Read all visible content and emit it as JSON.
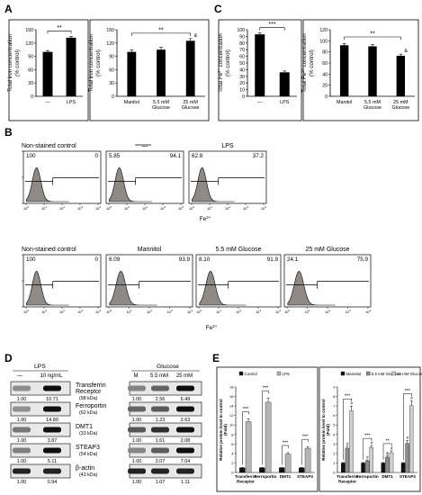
{
  "panel_labels": {
    "a": "A",
    "b": "B",
    "c": "C",
    "d": "D",
    "e": "E"
  },
  "chart_data": [
    {
      "id": "A1",
      "type": "bar",
      "ylabel": "Total iron concentration (% control)",
      "ylabel_lines": [
        "Total iron concentration",
        "(% control)"
      ],
      "categories": [
        "—",
        "LPS"
      ],
      "values": [
        100,
        132
      ],
      "errors": [
        3,
        3
      ],
      "ylim": [
        0,
        150
      ],
      "yticks": [
        0,
        30,
        60,
        90,
        120,
        150
      ],
      "significance": [
        {
          "from": 0,
          "to": 1,
          "label": "**"
        }
      ]
    },
    {
      "id": "A2",
      "type": "bar",
      "ylabel": "Total iron concentration (% control)",
      "ylabel_lines": [
        "Total iron concentration",
        "(% control)"
      ],
      "categories": [
        "Manitol",
        "5.5 mM Glucose",
        "25 mM Glucose"
      ],
      "category_lines": [
        [
          "Manitol"
        ],
        [
          "5.5 mM",
          "Glucose"
        ],
        [
          "25 mM",
          "Glucose"
        ]
      ],
      "values": [
        100,
        105,
        125
      ],
      "errors": [
        4,
        5,
        5
      ],
      "ylim": [
        0,
        150
      ],
      "yticks": [
        0,
        30,
        60,
        90,
        120,
        150
      ],
      "significance": [
        {
          "from": 0,
          "to": 2,
          "label": "**"
        }
      ],
      "bar_marks": [
        {
          "index": 2,
          "label": "&"
        }
      ]
    },
    {
      "id": "C1",
      "type": "bar",
      "ylabel": "Total Fe2+ concentration (% control)",
      "ylabel_lines": [
        "Total Fe",
        "2+",
        " concentration",
        "(% control)"
      ],
      "categories": [
        "—",
        "LPS"
      ],
      "values": [
        93,
        36
      ],
      "errors": [
        2,
        2
      ],
      "ylim": [
        0,
        100
      ],
      "yticks": [
        0,
        10,
        20,
        30,
        40,
        50,
        60,
        70,
        80,
        90,
        100
      ],
      "significance": [
        {
          "from": 0,
          "to": 1,
          "label": "***"
        }
      ]
    },
    {
      "id": "C2",
      "type": "bar",
      "ylabel": "Total Fe2+ concentration (% control)",
      "ylabel_lines": [
        "Total Fe",
        "2+",
        " concentration",
        "(% control)"
      ],
      "categories": [
        "Manitol",
        "5.5 mM Glucose",
        "25 mM Glucose"
      ],
      "category_lines": [
        [
          "Manitol"
        ],
        [
          "5.5 mM",
          "Glucose"
        ],
        [
          "25 mM",
          "Glucose"
        ]
      ],
      "values": [
        92,
        90,
        73
      ],
      "errors": [
        3,
        3,
        3
      ],
      "ylim": [
        0,
        120
      ],
      "yticks": [
        0,
        20,
        40,
        60,
        80,
        100,
        120
      ],
      "significance": [
        {
          "from": 0,
          "to": 2,
          "label": "**"
        }
      ],
      "bar_marks": [
        {
          "index": 2,
          "label": "&"
        }
      ]
    },
    {
      "id": "E1",
      "type": "bar",
      "ylabel": "Relative protein level to control (Fold)",
      "ylabel_lines": [
        "Relative protein level to control",
        "(Fold)"
      ],
      "categories": [
        "Transferrin Receptor",
        "Ferroportin",
        "DMT1",
        "STEAP3"
      ],
      "category_lines": [
        [
          "Transferrin",
          "Receptor"
        ],
        [
          "Ferroportin"
        ],
        [
          "DMT1"
        ],
        [
          "STEAP3"
        ]
      ],
      "series": [
        {
          "name": "Control",
          "values": [
            1,
            1,
            1,
            1
          ],
          "errors": [
            0.05,
            0.05,
            0.05,
            0.05
          ],
          "color": "#111111"
        },
        {
          "name": "LPS",
          "values": [
            10.7,
            14.8,
            3.87,
            5.11
          ],
          "errors": [
            0.6,
            0.9,
            0.3,
            0.35
          ],
          "color": "#b5b5b5"
        }
      ],
      "ylim": [
        0,
        18
      ],
      "yticks": [
        0,
        2,
        4,
        6,
        8,
        10,
        12,
        14,
        16,
        18
      ],
      "significance": [
        {
          "category": 0,
          "label": "***"
        },
        {
          "category": 1,
          "label": "***"
        },
        {
          "category": 2,
          "label": "***"
        },
        {
          "category": 3,
          "label": "***"
        }
      ]
    },
    {
      "id": "E2",
      "type": "bar",
      "ylabel": "Relative protein level to control (Fold)",
      "ylabel_lines": [
        "Relative protein level to control",
        "(Fold)"
      ],
      "categories": [
        "Transferrin Receptor",
        "Ferroportin",
        "DMT1",
        "STEAP3"
      ],
      "category_lines": [
        [
          "Transferrin",
          "Receptor"
        ],
        [
          "Ferroportin"
        ],
        [
          "DMT1"
        ],
        [
          "STEAP3"
        ]
      ],
      "series": [
        {
          "name": "Mannitol",
          "values": [
            1,
            1,
            1,
            1
          ],
          "errors": [
            0.05,
            0.05,
            0.05,
            0.05
          ],
          "color": "#111111"
        },
        {
          "name": "5.5 mM Glucose",
          "values": [
            2.56,
            1.23,
            1.61,
            3.07
          ],
          "errors": [
            0.2,
            0.1,
            0.15,
            0.3
          ],
          "color": "#8c8c8c"
        },
        {
          "name": "25 mM Glucose",
          "values": [
            6.49,
            2.63,
            2.08,
            7.04
          ],
          "errors": [
            0.5,
            0.2,
            0.2,
            0.5
          ],
          "color": "#cfcfcf"
        }
      ],
      "ylim": [
        0,
        9
      ],
      "yticks": [
        0,
        1,
        2,
        3,
        4,
        5,
        6,
        7,
        8,
        9
      ],
      "significance": [
        {
          "category": 0,
          "label": "***"
        },
        {
          "category": 1,
          "label": "***"
        },
        {
          "category": 2,
          "label": "**"
        },
        {
          "category": 3,
          "label": "***"
        }
      ],
      "bar_marks": [
        {
          "category": 0,
          "series": 1,
          "label": "#"
        },
        {
          "category": 0,
          "series": 2,
          "label": "#"
        },
        {
          "category": 1,
          "series": 1,
          "label": "#"
        },
        {
          "category": 1,
          "series": 2,
          "label": "#"
        },
        {
          "category": 2,
          "series": 1,
          "label": "&"
        },
        {
          "category": 2,
          "series": 2,
          "label": "#"
        },
        {
          "category": 3,
          "series": 1,
          "label": "#"
        },
        {
          "category": 3,
          "series": 2,
          "label": "#"
        }
      ]
    }
  ],
  "flow": {
    "axis_label": "Fe",
    "axis_label_sup": "2+",
    "tick_exponents": [
      "0",
      "1",
      "2",
      "3",
      "4"
    ],
    "tick_base": "10",
    "row1": {
      "headers": [
        "Non-stained control",
        "—",
        "LPS"
      ],
      "panels": [
        {
          "left": "100",
          "right": "0"
        },
        {
          "left": "5.85",
          "right": "94.1"
        },
        {
          "left": "62.8",
          "right": "37.2"
        }
      ]
    },
    "row2": {
      "headers": [
        "Non-stained control",
        "Mannitol",
        "5.5 mM Glucose",
        "25 mM Glucose"
      ],
      "panels": [
        {
          "left": "100",
          "right": "0"
        },
        {
          "left": "6.09",
          "right": "93.9"
        },
        {
          "left": "8.10",
          "right": "91.9"
        },
        {
          "left": "24.1",
          "right": "75.9"
        }
      ]
    }
  },
  "western": {
    "left": {
      "header": "LPS",
      "lanes": [
        "—",
        "10 ng/mL"
      ],
      "rows": [
        {
          "vals": [
            "1.00",
            "10.71"
          ]
        },
        {
          "vals": [
            "1.00",
            "14.80"
          ]
        },
        {
          "vals": [
            "1.00",
            "3.87"
          ]
        },
        {
          "vals": [
            "1.00",
            "5.11"
          ]
        },
        {
          "vals": [
            "1.00",
            "0.94"
          ]
        }
      ]
    },
    "right": {
      "header": "Glucose",
      "lanes": [
        "M",
        "5.5 mM",
        "25 mM"
      ],
      "rows": [
        {
          "vals": [
            "1.00",
            "2.56",
            "6.49"
          ]
        },
        {
          "vals": [
            "1.00",
            "1.23",
            "2.63"
          ]
        },
        {
          "vals": [
            "1.00",
            "1.61",
            "2.08"
          ]
        },
        {
          "vals": [
            "1.00",
            "3.07",
            "7.04"
          ]
        },
        {
          "vals": [
            "1.00",
            "1.07",
            "1.11"
          ]
        }
      ]
    },
    "labels": [
      {
        "name": "Transferrin",
        "name2": "Receptor",
        "kda": "(98 kDa)"
      },
      {
        "name": "Ferroportin",
        "name2": "",
        "kda": "(62 kDa)"
      },
      {
        "name": "DMT1",
        "name2": "",
        "kda": "(33 kDa)"
      },
      {
        "name": "STEAP3",
        "name2": "",
        "kda": "(54 kDa)"
      },
      {
        "name": "β-actin",
        "name2": "",
        "kda": "(43 kDa)"
      }
    ]
  }
}
